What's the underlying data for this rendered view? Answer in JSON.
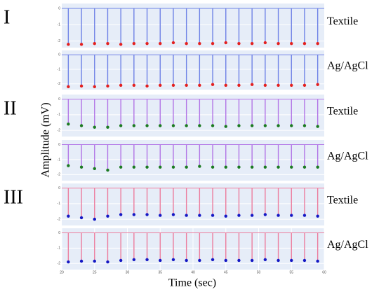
{
  "axes_labels": {
    "x": "Time (sec)",
    "y": "Amplitude (mV)"
  },
  "chart_data": [
    {
      "type": "stem",
      "lead": "I",
      "label": "Textile",
      "grid": true,
      "xlim": [
        20,
        60
      ],
      "ylim": [
        -2.4,
        0.3
      ],
      "yticks": [
        0,
        -1,
        -2
      ],
      "x": [
        21,
        23,
        25,
        27,
        29,
        31,
        33,
        35,
        37,
        39,
        41,
        43,
        45,
        47,
        49,
        51,
        53,
        55,
        57,
        59
      ],
      "series": [
        {
          "color": "#6f82e6",
          "marker_color": "#e3201f",
          "values": [
            -2.2,
            -2.2,
            -2.15,
            -2.15,
            -2.2,
            -2.15,
            -2.15,
            -2.15,
            -2.1,
            -2.15,
            -2.15,
            -2.15,
            -2.1,
            -2.15,
            -2.15,
            -2.1,
            -2.15,
            -2.15,
            -2.15,
            -2.15
          ]
        }
      ]
    },
    {
      "type": "stem",
      "label": "Ag/AgCl",
      "grid": true,
      "xlim": [
        20,
        60
      ],
      "ylim": [
        -2.4,
        0.3
      ],
      "yticks": [
        0,
        -1,
        -2
      ],
      "x": [
        21,
        23,
        25,
        27,
        29,
        31,
        33,
        35,
        37,
        39,
        41,
        43,
        45,
        47,
        49,
        51,
        53,
        55,
        57,
        59
      ],
      "series": [
        {
          "color": "#6f82e6",
          "marker_color": "#e3201f",
          "values": [
            -2.2,
            -2.15,
            -2.2,
            -2.15,
            -2.1,
            -2.1,
            -2.15,
            -2.1,
            -2.1,
            -2.1,
            -2.1,
            -2.05,
            -2.1,
            -2.1,
            -2.05,
            -2.1,
            -2.1,
            -2.1,
            -2.1,
            -2.05
          ]
        }
      ]
    },
    {
      "type": "stem",
      "lead": "II",
      "label": "Textile",
      "grid": true,
      "xlim": [
        20,
        60
      ],
      "ylim": [
        -2.4,
        0.3
      ],
      "yticks": [
        0,
        -1,
        -2
      ],
      "x": [
        21,
        23,
        25,
        27,
        29,
        31,
        33,
        35,
        37,
        39,
        41,
        43,
        45,
        47,
        49,
        51,
        53,
        55,
        57,
        59
      ],
      "series": [
        {
          "color": "#b275e6",
          "marker_color": "#1c7a22",
          "values": [
            -1.6,
            -1.7,
            -1.8,
            -1.8,
            -1.7,
            -1.7,
            -1.7,
            -1.7,
            -1.7,
            -1.7,
            -1.7,
            -1.7,
            -1.75,
            -1.7,
            -1.7,
            -1.7,
            -1.7,
            -1.7,
            -1.7,
            -1.75
          ]
        }
      ]
    },
    {
      "type": "stem",
      "label": "Ag/AgCl",
      "grid": true,
      "xlim": [
        20,
        60
      ],
      "ylim": [
        -2.4,
        0.3
      ],
      "yticks": [
        0,
        -1,
        -2
      ],
      "x": [
        21,
        23,
        25,
        27,
        29,
        31,
        33,
        35,
        37,
        39,
        41,
        43,
        45,
        47,
        49,
        51,
        53,
        55,
        57,
        59
      ],
      "series": [
        {
          "color": "#b275e6",
          "marker_color": "#1c7a22",
          "values": [
            -1.4,
            -1.5,
            -1.6,
            -1.7,
            -1.5,
            -1.5,
            -1.5,
            -1.5,
            -1.5,
            -1.5,
            -1.45,
            -1.5,
            -1.5,
            -1.5,
            -1.5,
            -1.5,
            -1.5,
            -1.5,
            -1.5,
            -1.5
          ]
        }
      ]
    },
    {
      "type": "stem",
      "lead": "III",
      "label": "Textile",
      "grid": true,
      "xlim": [
        20,
        60
      ],
      "ylim": [
        -2.4,
        0.3
      ],
      "yticks": [
        0,
        -1,
        -2
      ],
      "x": [
        21,
        23,
        25,
        27,
        29,
        31,
        33,
        35,
        37,
        39,
        41,
        43,
        45,
        47,
        49,
        51,
        53,
        55,
        57,
        59
      ],
      "series": [
        {
          "color": "#ec7d9e",
          "marker_color": "#1418c4",
          "values": [
            -1.8,
            -1.9,
            -2.0,
            -1.8,
            -1.7,
            -1.7,
            -1.7,
            -1.75,
            -1.7,
            -1.75,
            -1.75,
            -1.75,
            -1.8,
            -1.75,
            -1.75,
            -1.7,
            -1.75,
            -1.75,
            -1.75,
            -1.8
          ]
        }
      ]
    },
    {
      "type": "stem",
      "label": "Ag/AgCl",
      "grid": true,
      "xlim": [
        20,
        60
      ],
      "ylim": [
        -2.4,
        0.3
      ],
      "yticks": [
        0,
        -1,
        -2
      ],
      "xticks": [
        20,
        25,
        30,
        35,
        40,
        45,
        50,
        55,
        60
      ],
      "x": [
        21,
        23,
        25,
        27,
        29,
        31,
        33,
        35,
        37,
        39,
        41,
        43,
        45,
        47,
        49,
        51,
        53,
        55,
        57,
        59
      ],
      "series": [
        {
          "color": "#ec7d9e",
          "marker_color": "#1418c4",
          "values": [
            -1.9,
            -1.85,
            -1.85,
            -1.9,
            -1.8,
            -1.75,
            -1.75,
            -1.8,
            -1.75,
            -1.8,
            -1.8,
            -1.75,
            -1.8,
            -1.8,
            -1.8,
            -1.75,
            -1.8,
            -1.8,
            -1.8,
            -1.85
          ]
        }
      ]
    }
  ]
}
